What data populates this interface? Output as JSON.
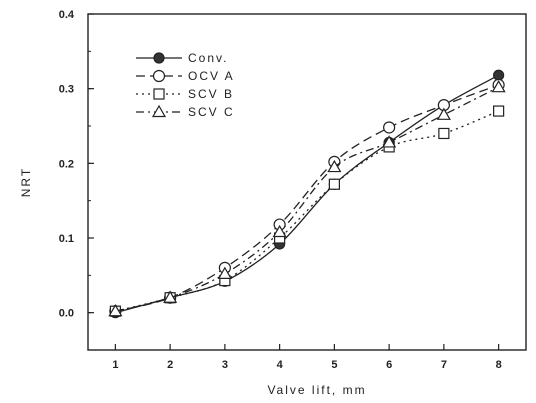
{
  "chart_data": {
    "type": "line",
    "title": "",
    "xlabel": "Valve lift, mm",
    "ylabel": "NRT",
    "xlim": [
      0.5,
      8.5
    ],
    "ylim": [
      -0.05,
      0.4
    ],
    "xticks": [
      1,
      2,
      3,
      4,
      5,
      6,
      7,
      8
    ],
    "xtick_labels": [
      "1",
      "2",
      "3",
      "4",
      "5",
      "6",
      "7",
      "8"
    ],
    "yticks": [
      0.0,
      0.1,
      0.2,
      0.3,
      0.4
    ],
    "ytick_labels": [
      "0.0",
      "0.1",
      "0.2",
      "0.3",
      "0.4"
    ],
    "grid": false,
    "legend_position": "top-left",
    "x": [
      1,
      2,
      3,
      4,
      5,
      6,
      7,
      8
    ],
    "series": [
      {
        "name": "Conv.",
        "marker": "filled-circle",
        "line": "solid",
        "color": "#222222",
        "values": [
          0.0,
          0.02,
          0.042,
          0.092,
          0.172,
          0.228,
          0.278,
          0.318
        ]
      },
      {
        "name": "OCV A",
        "marker": "open-circle",
        "line": "dashed",
        "color": "#222222",
        "values": [
          0.002,
          0.02,
          0.06,
          0.118,
          0.202,
          0.248,
          0.278,
          0.305
        ]
      },
      {
        "name": "SCV B",
        "marker": "open-square",
        "line": "dotted",
        "color": "#222222",
        "values": [
          0.002,
          0.02,
          0.043,
          0.1,
          0.172,
          0.222,
          0.24,
          0.27
        ]
      },
      {
        "name": "SCV C",
        "marker": "open-triangle",
        "line": "dash-dot",
        "color": "#222222",
        "values": [
          0.002,
          0.02,
          0.052,
          0.108,
          0.195,
          0.228,
          0.265,
          0.302
        ]
      }
    ]
  }
}
